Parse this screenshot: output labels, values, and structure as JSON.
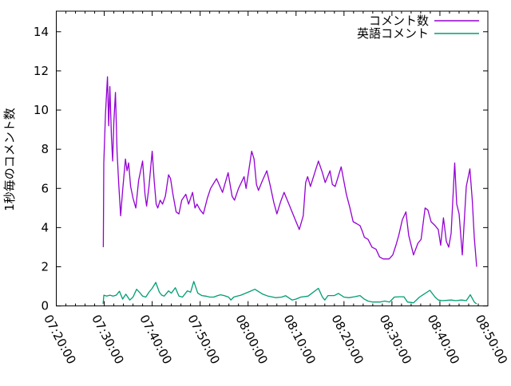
{
  "colors": {
    "background": "#ffffff",
    "axis": "#000000",
    "series_comment": "#9400d3",
    "series_english": "#009e73"
  },
  "chart_data": {
    "type": "line",
    "title": "",
    "xlabel": "",
    "ylabel": "1秒毎のコメント数",
    "x_range": [
      "07:20:00",
      "08:50:00"
    ],
    "ylim": [
      0,
      15.05
    ],
    "grid": false,
    "legend_position": "top-right-inside",
    "x_tick_labels": [
      "07:20:00",
      "07:30:00",
      "07:40:00",
      "07:50:00",
      "08:00:00",
      "08:10:00",
      "08:20:00",
      "08:30:00",
      "08:40:00",
      "08:50:00"
    ],
    "x_minor_tick_interval_seconds": 120,
    "y_tick_labels": [
      "0",
      "2",
      "4",
      "6",
      "8",
      "10",
      "12",
      "14"
    ],
    "series": [
      {
        "name": "コメント数",
        "color": "#9400d3",
        "points": [
          [
            "07:29:48",
            3.0
          ],
          [
            "07:29:54",
            7.3
          ],
          [
            "07:30:15",
            9.8
          ],
          [
            "07:30:40",
            11.7
          ],
          [
            "07:30:55",
            9.2
          ],
          [
            "07:31:10",
            11.2
          ],
          [
            "07:31:30",
            8.6
          ],
          [
            "07:31:45",
            7.4
          ],
          [
            "07:32:00",
            9.4
          ],
          [
            "07:32:20",
            10.9
          ],
          [
            "07:32:40",
            7.9
          ],
          [
            "07:33:00",
            6.3
          ],
          [
            "07:33:25",
            4.6
          ],
          [
            "07:33:50",
            5.9
          ],
          [
            "07:34:25",
            7.5
          ],
          [
            "07:34:45",
            6.9
          ],
          [
            "07:35:05",
            7.3
          ],
          [
            "07:35:30",
            6.1
          ],
          [
            "07:36:00",
            5.5
          ],
          [
            "07:36:35",
            5.0
          ],
          [
            "07:37:10",
            6.4
          ],
          [
            "07:38:00",
            7.4
          ],
          [
            "07:38:30",
            5.7
          ],
          [
            "07:38:50",
            5.1
          ],
          [
            "07:39:20",
            6.1
          ],
          [
            "07:40:00",
            7.9
          ],
          [
            "07:40:25",
            6.4
          ],
          [
            "07:40:50",
            5.2
          ],
          [
            "07:41:10",
            5.0
          ],
          [
            "07:41:40",
            5.4
          ],
          [
            "07:42:10",
            5.2
          ],
          [
            "07:42:45",
            5.6
          ],
          [
            "07:43:25",
            6.7
          ],
          [
            "07:43:50",
            6.5
          ],
          [
            "07:44:20",
            5.7
          ],
          [
            "07:45:00",
            4.8
          ],
          [
            "07:45:35",
            4.7
          ],
          [
            "07:46:10",
            5.4
          ],
          [
            "07:47:00",
            5.7
          ],
          [
            "07:47:35",
            5.2
          ],
          [
            "07:48:25",
            5.8
          ],
          [
            "07:48:55",
            5.0
          ],
          [
            "07:49:20",
            5.2
          ],
          [
            "07:50:00",
            4.9
          ],
          [
            "07:50:40",
            4.7
          ],
          [
            "07:51:30",
            5.5
          ],
          [
            "07:52:10",
            6.0
          ],
          [
            "07:53:25",
            6.5
          ],
          [
            "07:54:40",
            5.8
          ],
          [
            "07:55:50",
            6.8
          ],
          [
            "07:56:40",
            5.6
          ],
          [
            "07:57:10",
            5.4
          ],
          [
            "07:58:00",
            6.0
          ],
          [
            "07:59:10",
            6.6
          ],
          [
            "07:59:35",
            6.0
          ],
          [
            "08:00:45",
            7.9
          ],
          [
            "08:01:15",
            7.5
          ],
          [
            "08:01:45",
            6.2
          ],
          [
            "08:02:10",
            5.9
          ],
          [
            "08:03:00",
            6.4
          ],
          [
            "08:03:55",
            6.9
          ],
          [
            "08:04:40",
            6.1
          ],
          [
            "08:05:20",
            5.3
          ],
          [
            "08:06:00",
            4.7
          ],
          [
            "08:06:45",
            5.3
          ],
          [
            "08:07:30",
            5.8
          ],
          [
            "08:08:20",
            5.3
          ],
          [
            "08:09:30",
            4.6
          ],
          [
            "08:10:40",
            3.9
          ],
          [
            "08:11:30",
            4.6
          ],
          [
            "08:12:00",
            6.3
          ],
          [
            "08:12:25",
            6.6
          ],
          [
            "08:13:00",
            6.1
          ],
          [
            "08:14:40",
            7.4
          ],
          [
            "08:15:30",
            6.8
          ],
          [
            "08:16:05",
            6.3
          ],
          [
            "08:17:05",
            6.9
          ],
          [
            "08:17:35",
            6.2
          ],
          [
            "08:18:10",
            6.1
          ],
          [
            "08:19:25",
            7.1
          ],
          [
            "08:20:30",
            5.7
          ],
          [
            "08:21:15",
            5.0
          ],
          [
            "08:21:55",
            4.3
          ],
          [
            "08:22:40",
            4.2
          ],
          [
            "08:23:20",
            4.1
          ],
          [
            "08:23:50",
            3.8
          ],
          [
            "08:24:15",
            3.5
          ],
          [
            "08:25:00",
            3.4
          ],
          [
            "08:25:50",
            3.0
          ],
          [
            "08:26:40",
            2.9
          ],
          [
            "08:27:25",
            2.5
          ],
          [
            "08:28:10",
            2.4
          ],
          [
            "08:29:25",
            2.4
          ],
          [
            "08:30:10",
            2.6
          ],
          [
            "08:30:50",
            3.1
          ],
          [
            "08:31:25",
            3.6
          ],
          [
            "08:32:10",
            4.4
          ],
          [
            "08:32:55",
            4.8
          ],
          [
            "08:33:30",
            3.6
          ],
          [
            "08:34:30",
            2.6
          ],
          [
            "08:35:25",
            3.2
          ],
          [
            "08:36:05",
            3.4
          ],
          [
            "08:36:55",
            5.0
          ],
          [
            "08:37:30",
            4.9
          ],
          [
            "08:38:10",
            4.3
          ],
          [
            "08:39:00",
            4.1
          ],
          [
            "08:39:40",
            3.9
          ],
          [
            "08:40:10",
            3.1
          ],
          [
            "08:40:45",
            4.5
          ],
          [
            "08:41:20",
            3.3
          ],
          [
            "08:41:50",
            3.0
          ],
          [
            "08:42:20",
            3.7
          ],
          [
            "08:43:05",
            7.3
          ],
          [
            "08:43:30",
            5.2
          ],
          [
            "08:44:00",
            4.7
          ],
          [
            "08:44:40",
            2.6
          ],
          [
            "08:45:30",
            6.1
          ],
          [
            "08:46:15",
            7.0
          ],
          [
            "08:46:45",
            5.4
          ],
          [
            "08:47:10",
            3.5
          ],
          [
            "08:47:40",
            2.0
          ]
        ]
      },
      {
        "name": "英語コメント",
        "color": "#009e73",
        "points": [
          [
            "07:29:45",
            0.1
          ],
          [
            "07:29:55",
            0.55
          ],
          [
            "07:30:30",
            0.5
          ],
          [
            "07:31:10",
            0.55
          ],
          [
            "07:31:50",
            0.5
          ],
          [
            "07:32:30",
            0.55
          ],
          [
            "07:33:10",
            0.75
          ],
          [
            "07:33:50",
            0.35
          ],
          [
            "07:34:30",
            0.6
          ],
          [
            "07:35:20",
            0.3
          ],
          [
            "07:36:00",
            0.45
          ],
          [
            "07:36:45",
            0.85
          ],
          [
            "07:37:20",
            0.7
          ],
          [
            "07:38:00",
            0.5
          ],
          [
            "07:38:40",
            0.45
          ],
          [
            "07:39:20",
            0.7
          ],
          [
            "07:40:00",
            0.9
          ],
          [
            "07:40:45",
            1.2
          ],
          [
            "07:41:30",
            0.7
          ],
          [
            "07:42:00",
            0.55
          ],
          [
            "07:42:30",
            0.5
          ],
          [
            "07:43:25",
            0.77
          ],
          [
            "07:44:00",
            0.65
          ],
          [
            "07:44:50",
            0.93
          ],
          [
            "07:45:35",
            0.5
          ],
          [
            "07:46:20",
            0.45
          ],
          [
            "07:47:20",
            0.77
          ],
          [
            "07:48:00",
            0.7
          ],
          [
            "07:48:40",
            1.25
          ],
          [
            "07:49:30",
            0.65
          ],
          [
            "07:50:20",
            0.53
          ],
          [
            "07:51:10",
            0.5
          ],
          [
            "07:52:00",
            0.45
          ],
          [
            "07:52:50",
            0.45
          ],
          [
            "07:53:40",
            0.53
          ],
          [
            "07:54:15",
            0.57
          ],
          [
            "07:55:00",
            0.53
          ],
          [
            "07:55:55",
            0.45
          ],
          [
            "07:56:25",
            0.3
          ],
          [
            "07:57:00",
            0.45
          ],
          [
            "07:57:45",
            0.5
          ],
          [
            "07:58:30",
            0.55
          ],
          [
            "08:00:00",
            0.7
          ],
          [
            "08:01:25",
            0.85
          ],
          [
            "08:03:05",
            0.6
          ],
          [
            "08:04:10",
            0.5
          ],
          [
            "08:05:45",
            0.42
          ],
          [
            "08:07:00",
            0.45
          ],
          [
            "08:07:50",
            0.52
          ],
          [
            "08:09:10",
            0.3
          ],
          [
            "08:10:00",
            0.35
          ],
          [
            "08:11:00",
            0.45
          ],
          [
            "08:12:30",
            0.5
          ],
          [
            "08:14:40",
            0.9
          ],
          [
            "08:15:30",
            0.45
          ],
          [
            "08:16:00",
            0.3
          ],
          [
            "08:16:40",
            0.53
          ],
          [
            "08:18:00",
            0.53
          ],
          [
            "08:18:50",
            0.64
          ],
          [
            "08:20:00",
            0.45
          ],
          [
            "08:21:00",
            0.42
          ],
          [
            "08:22:10",
            0.47
          ],
          [
            "08:23:20",
            0.53
          ],
          [
            "08:24:10",
            0.36
          ],
          [
            "08:25:00",
            0.25
          ],
          [
            "08:26:00",
            0.2
          ],
          [
            "08:27:30",
            0.2
          ],
          [
            "08:28:30",
            0.25
          ],
          [
            "08:29:30",
            0.2
          ],
          [
            "08:30:30",
            0.45
          ],
          [
            "08:31:30",
            0.47
          ],
          [
            "08:32:30",
            0.47
          ],
          [
            "08:33:15",
            0.2
          ],
          [
            "08:34:30",
            0.16
          ],
          [
            "08:35:45",
            0.45
          ],
          [
            "08:36:30",
            0.57
          ],
          [
            "08:37:55",
            0.8
          ],
          [
            "08:39:00",
            0.45
          ],
          [
            "08:39:40",
            0.3
          ],
          [
            "08:40:30",
            0.27
          ],
          [
            "08:42:20",
            0.3
          ],
          [
            "08:43:20",
            0.27
          ],
          [
            "08:44:30",
            0.3
          ],
          [
            "08:45:30",
            0.27
          ],
          [
            "08:46:20",
            0.57
          ],
          [
            "08:47:10",
            0.2
          ],
          [
            "08:47:40",
            0.1
          ]
        ]
      }
    ]
  }
}
